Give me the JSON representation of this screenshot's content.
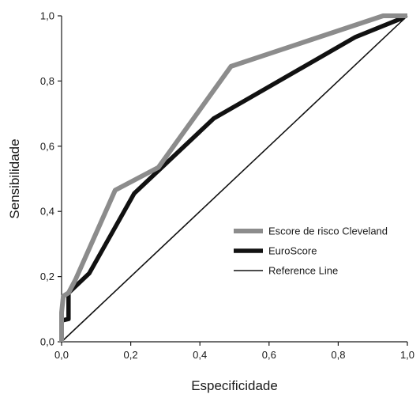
{
  "chart_data": {
    "type": "line",
    "title": "",
    "xlabel": "Especificidade",
    "ylabel": "Sensibilidade",
    "xlim": [
      0,
      1
    ],
    "ylim": [
      0,
      1
    ],
    "x_ticks": [
      "0,0",
      "0,2",
      "0,4",
      "0,6",
      "0,8",
      "1,0"
    ],
    "y_ticks": [
      "0,0",
      "0,2",
      "0,4",
      "0,6",
      "0,8",
      "1,0"
    ],
    "grid": false,
    "legend_position": "bottom-right",
    "series": [
      {
        "name": "Escore de risco Cleveland",
        "color": "#8c8c8c",
        "points": [
          [
            0,
            0
          ],
          [
            0,
            0.09
          ],
          [
            0.005,
            0.14
          ],
          [
            0.02,
            0.15
          ],
          [
            0.04,
            0.19
          ],
          [
            0.155,
            0.465
          ],
          [
            0.28,
            0.535
          ],
          [
            0.49,
            0.845
          ],
          [
            0.93,
            1.0
          ],
          [
            1.0,
            1.0
          ]
        ]
      },
      {
        "name": "EuroScore",
        "color": "#111111",
        "points": [
          [
            0,
            0
          ],
          [
            0,
            0.065
          ],
          [
            0.02,
            0.07
          ],
          [
            0.02,
            0.15
          ],
          [
            0.08,
            0.21
          ],
          [
            0.21,
            0.455
          ],
          [
            0.44,
            0.685
          ],
          [
            0.85,
            0.935
          ],
          [
            0.99,
            0.995
          ]
        ]
      },
      {
        "name": "Reference Line",
        "color": "#111111",
        "points": [
          [
            0,
            0
          ],
          [
            1,
            1
          ]
        ]
      }
    ]
  }
}
